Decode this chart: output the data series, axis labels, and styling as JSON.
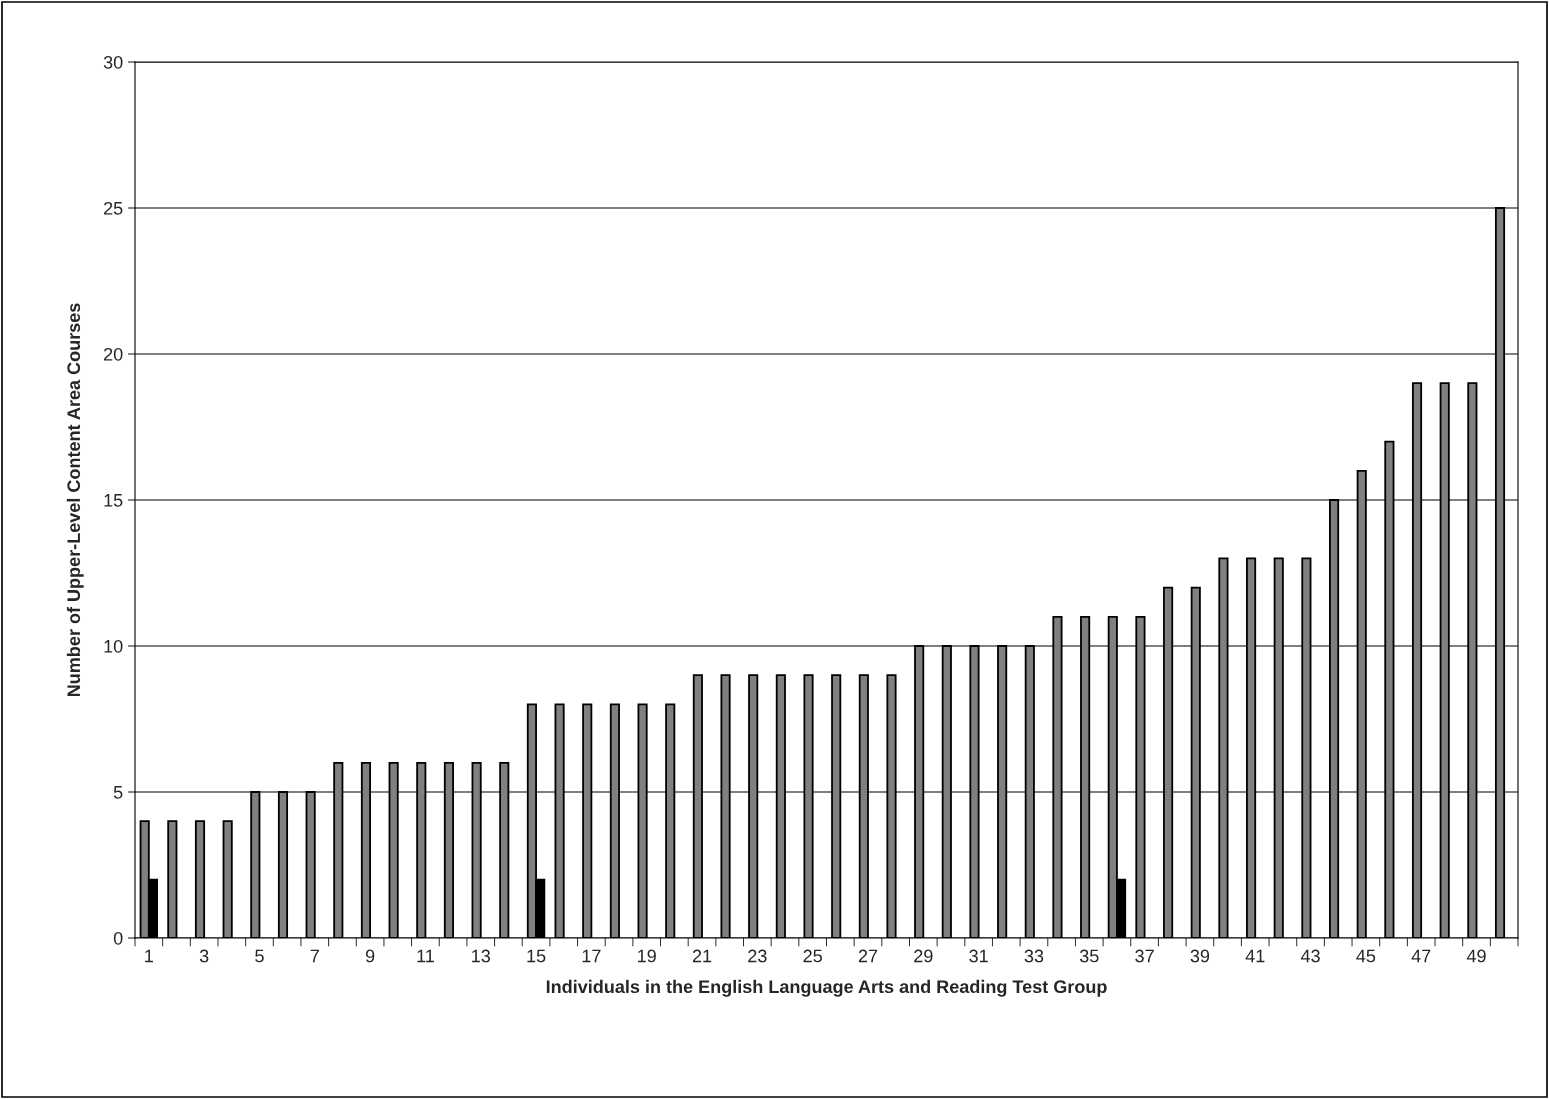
{
  "chart_data": {
    "type": "bar",
    "xlabel": "Individuals in the English Language Arts and Reading Test Group",
    "ylabel": "Number of Upper-Level Content Area Courses",
    "categories": [
      "1",
      null,
      "3",
      null,
      "5",
      null,
      "7",
      null,
      "9",
      null,
      "11",
      null,
      "13",
      null,
      "15",
      null,
      "17",
      null,
      "19",
      null,
      "21",
      null,
      "23",
      null,
      "25",
      null,
      "27",
      null,
      "29",
      null,
      "31",
      null,
      "33",
      null,
      "35",
      null,
      "37",
      null,
      "39",
      null,
      "41",
      null,
      "43",
      null,
      "45",
      null,
      "47",
      null,
      "49",
      null
    ],
    "series": [
      {
        "color": "#808080",
        "values": [
          4,
          4,
          4,
          4,
          5,
          5,
          5,
          6,
          6,
          6,
          6,
          6,
          6,
          6,
          8,
          8,
          8,
          8,
          8,
          8,
          9,
          9,
          9,
          9,
          9,
          9,
          9,
          9,
          10,
          10,
          10,
          10,
          10,
          11,
          11,
          11,
          11,
          12,
          12,
          13,
          13,
          13,
          13,
          15,
          16,
          17,
          19,
          19,
          19,
          25
        ]
      },
      {
        "color": "#000000",
        "values": [
          2,
          null,
          null,
          null,
          null,
          null,
          null,
          null,
          null,
          null,
          null,
          null,
          null,
          null,
          2,
          null,
          null,
          null,
          null,
          null,
          null,
          null,
          null,
          null,
          null,
          null,
          null,
          null,
          null,
          null,
          null,
          null,
          null,
          null,
          null,
          2,
          null,
          null,
          null,
          null,
          null,
          null,
          null,
          null,
          null,
          null,
          null,
          null,
          null,
          null
        ]
      }
    ],
    "ylim": [
      0,
      30
    ],
    "yticks": [
      0,
      5,
      10,
      15,
      20,
      25,
      30
    ],
    "grid": "y"
  }
}
